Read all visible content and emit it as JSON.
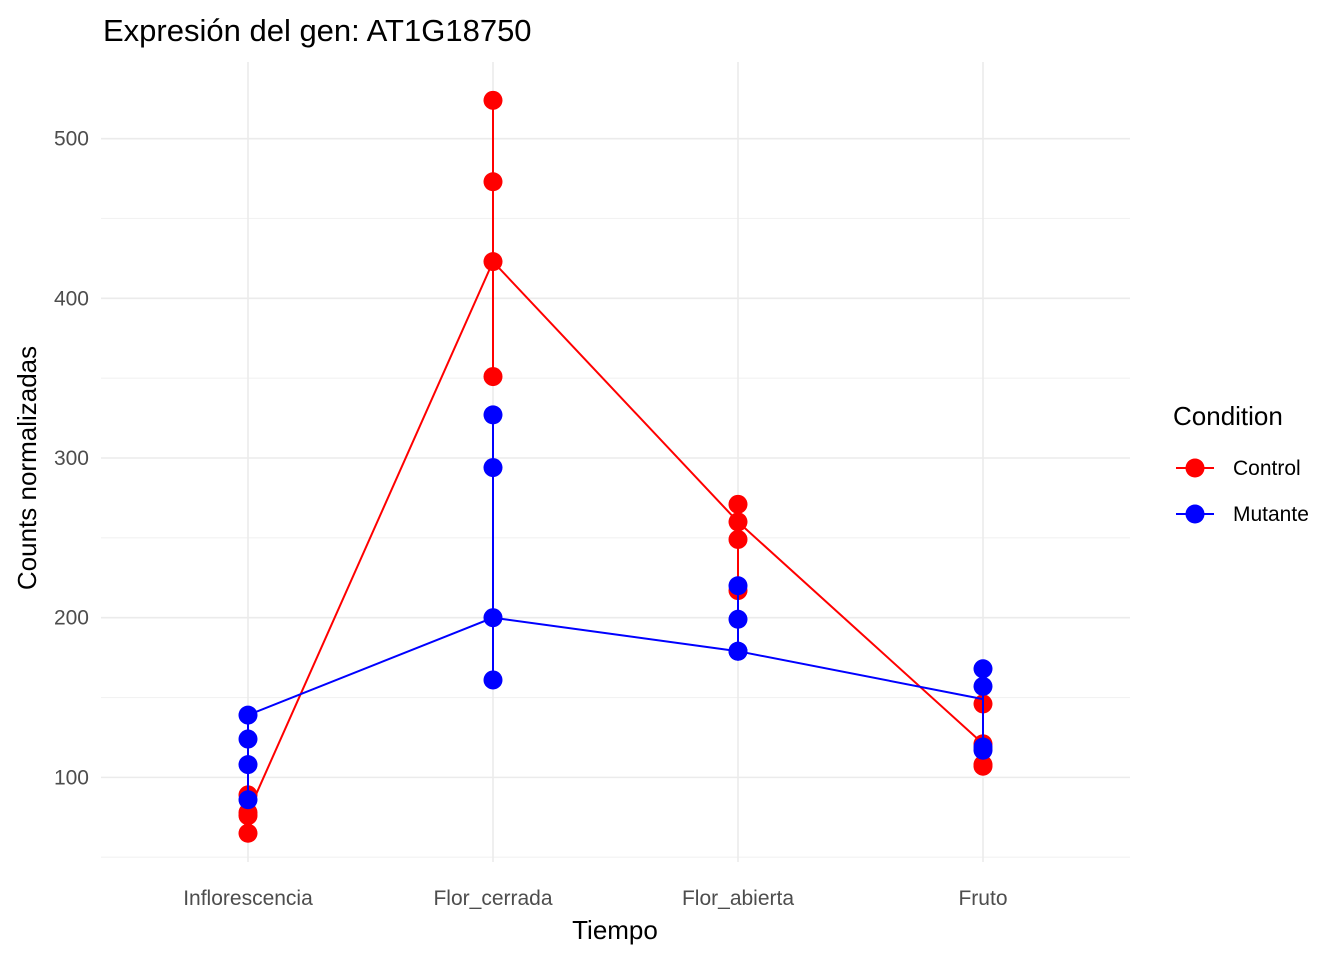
{
  "chart_data": {
    "type": "line",
    "title": "Expresión del gen: AT1G18750",
    "xlabel": "Tiempo",
    "ylabel": "Counts normalizadas",
    "categories": [
      "Inflorescencia",
      "Flor_cerrada",
      "Flor_abierta",
      "Fruto"
    ],
    "y_ticks": [
      100,
      200,
      300,
      400,
      500
    ],
    "ylim": [
      47,
      548
    ],
    "grid": true,
    "legend": {
      "title": "Condition",
      "position": "right"
    },
    "series": [
      {
        "name": "Control",
        "color": "#ff0000",
        "points": [
          [
            65,
            76,
            78,
            89
          ],
          [
            351,
            423,
            473,
            524
          ],
          [
            217,
            249,
            260,
            271
          ],
          [
            107,
            108,
            121,
            146
          ]
        ],
        "line": [
          78,
          423,
          260,
          121
        ]
      },
      {
        "name": "Mutante",
        "color": "#0000ff",
        "points": [
          [
            86,
            108,
            124,
            139
          ],
          [
            161,
            200,
            294,
            327
          ],
          [
            179,
            179,
            199,
            220
          ],
          [
            117,
            119,
            157,
            168
          ]
        ],
        "line": [
          139,
          200,
          179,
          149
        ]
      }
    ]
  }
}
